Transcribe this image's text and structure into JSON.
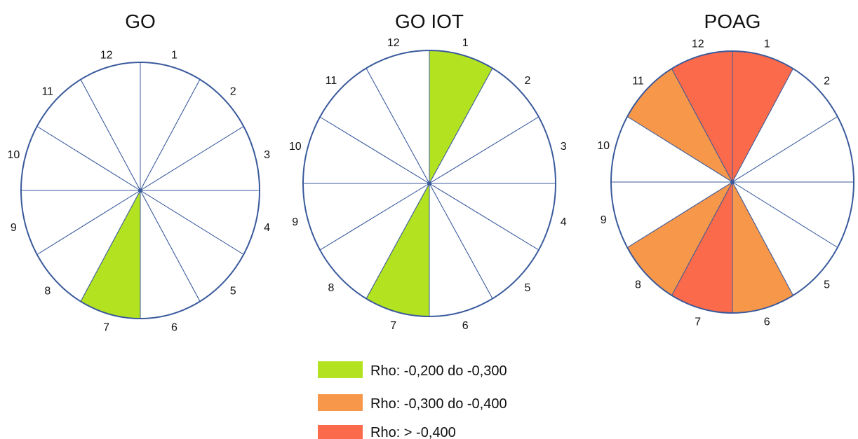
{
  "wheels": [
    {
      "title": "GO",
      "sectors": [
        {
          "label": "1",
          "category": null
        },
        {
          "label": "2",
          "category": null
        },
        {
          "label": "3",
          "category": null
        },
        {
          "label": "4",
          "category": null
        },
        {
          "label": "5",
          "category": null
        },
        {
          "label": "6",
          "category": null
        },
        {
          "label": "7",
          "category": "green"
        },
        {
          "label": "8",
          "category": null
        },
        {
          "label": "9",
          "category": null
        },
        {
          "label": "10",
          "category": null
        },
        {
          "label": "11",
          "category": null
        },
        {
          "label": "12",
          "category": null
        }
      ]
    },
    {
      "title": "GO IOT",
      "sectors": [
        {
          "label": "1",
          "category": "green"
        },
        {
          "label": "2",
          "category": null
        },
        {
          "label": "3",
          "category": null
        },
        {
          "label": "4",
          "category": null
        },
        {
          "label": "5",
          "category": null
        },
        {
          "label": "6",
          "category": null
        },
        {
          "label": "7",
          "category": "green"
        },
        {
          "label": "8",
          "category": null
        },
        {
          "label": "9",
          "category": null
        },
        {
          "label": "10",
          "category": null
        },
        {
          "label": "11",
          "category": null
        },
        {
          "label": "12",
          "category": null
        }
      ]
    },
    {
      "title": "POAG",
      "sectors": [
        {
          "label": "1",
          "category": "red"
        },
        {
          "label": "2",
          "category": null
        },
        {
          "label": "3",
          "category": null
        },
        {
          "label": "4",
          "category": null
        },
        {
          "label": "5",
          "category": null
        },
        {
          "label": "6",
          "category": "orange"
        },
        {
          "label": "7",
          "category": "red"
        },
        {
          "label": "8",
          "category": "orange"
        },
        {
          "label": "9",
          "category": null
        },
        {
          "label": "10",
          "category": null
        },
        {
          "label": "11",
          "category": "orange"
        },
        {
          "label": "12",
          "category": "red"
        }
      ]
    }
  ],
  "legend": [
    {
      "key": "green",
      "label": "Rho: -0,200 do -0,300",
      "color": "#b3e320"
    },
    {
      "key": "orange",
      "label": "Rho: -0,300 do -0,400",
      "color": "#f7974a"
    },
    {
      "key": "red",
      "label": "Rho: > -0,400",
      "color": "#fb6a4a"
    }
  ],
  "colors": {
    "outline": "#3a5a9c",
    "empty": "#ffffff"
  }
}
